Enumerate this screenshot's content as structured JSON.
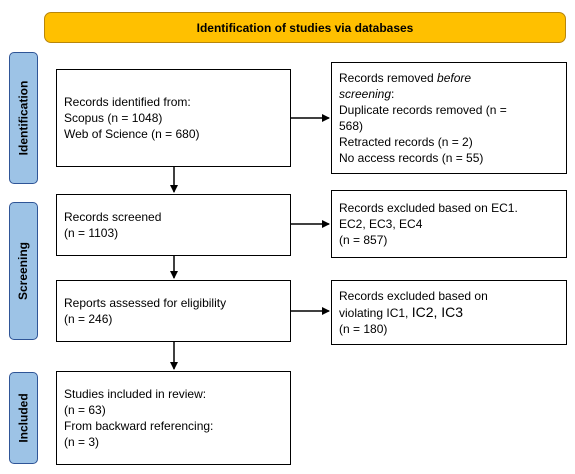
{
  "header": {
    "title": "Identification of studies via databases"
  },
  "stages": {
    "identification": "Identification",
    "screening": "Screening",
    "included": "Included"
  },
  "identified": {
    "line1": "Records identified from:",
    "line2": "Scopus (n = 1048)",
    "line3": "Web of Science (n = 680)"
  },
  "removed": {
    "line1_prefix": "Records removed ",
    "line1_italic": "before",
    "line2_italic": "screening",
    "line2_suffix": ":",
    "line3": "Duplicate records removed  (n =",
    "line4": "568)",
    "line5": "Retracted records (n = 2)",
    "line6": "No access records (n = 55)"
  },
  "screened": {
    "line1": "Records screened",
    "line2": "(n = 1103)"
  },
  "excluded_screen": {
    "line1": "Records excluded based on EC1.",
    "line2": "EC2, EC3, EC4",
    "line3": "(n = 857)"
  },
  "assessed": {
    "line1": "Reports assessed for eligibility",
    "line2": "(n = 246)"
  },
  "excluded_eligibility": {
    "line1": "Records excluded based on",
    "line2_a": "violating IC1, ",
    "line2_b": "IC2, IC3",
    "line3": "(n = 180)"
  },
  "included": {
    "line1": "Studies included in review:",
    "line2": "(n = 63)",
    "line3": "From backward referencing:",
    "line4": "(n = 3)"
  },
  "colors": {
    "header_fill": "#ffc000",
    "stage_fill": "#9dc3e6",
    "stage_border": "#2f5597"
  }
}
